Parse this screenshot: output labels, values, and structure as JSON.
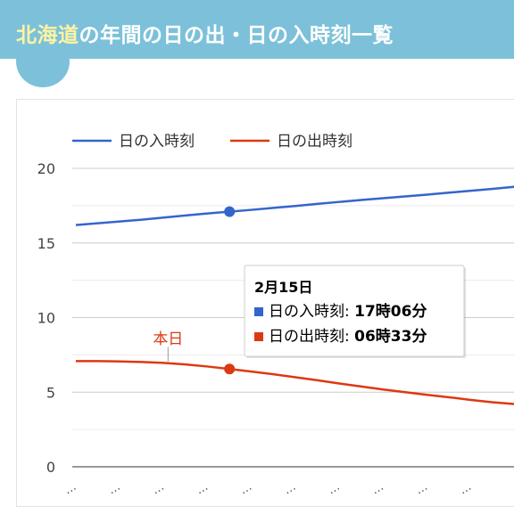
{
  "header": {
    "title_highlight": "北海道",
    "title_rest": "の年間の日の出・日の入時刻一覧"
  },
  "colors": {
    "header_bg": "#7cc1d9",
    "highlight_text": "#fff3a3",
    "sunset_series": "#3366cc",
    "sunrise_series": "#dc3912"
  },
  "chart_data": {
    "type": "line",
    "legend_position": "top-left",
    "grid": true,
    "ylim": [
      0,
      20
    ],
    "y_ticks": [
      "0",
      "5",
      "10",
      "15",
      "20"
    ],
    "x_ticks": [
      "…",
      "…",
      "…",
      "…",
      "…",
      "…",
      "…",
      "…",
      "…",
      "…"
    ],
    "series": [
      {
        "name": "日の入時刻",
        "color": "#3366cc",
        "x": [
          0,
          0.5,
          1,
          1.5,
          2,
          2.5,
          3,
          3.5,
          4,
          4.5,
          5,
          5.5,
          6,
          6.5,
          7,
          7.5,
          8,
          8.5,
          9,
          9.5,
          10
        ],
        "values": [
          16.2,
          16.32,
          16.44,
          16.56,
          16.7,
          16.84,
          16.98,
          17.1,
          17.22,
          17.35,
          17.48,
          17.62,
          17.75,
          17.88,
          18.0,
          18.12,
          18.24,
          18.37,
          18.5,
          18.63,
          18.77
        ]
      },
      {
        "name": "日の出時刻",
        "color": "#dc3912",
        "x": [
          0,
          0.5,
          1,
          1.5,
          2,
          2.5,
          3,
          3.5,
          4,
          4.5,
          5,
          5.5,
          6,
          6.5,
          7,
          7.5,
          8,
          8.5,
          9,
          9.5,
          10
        ],
        "values": [
          7.08,
          7.08,
          7.06,
          7.02,
          6.96,
          6.86,
          6.72,
          6.55,
          6.38,
          6.2,
          6.0,
          5.8,
          5.58,
          5.38,
          5.18,
          5.0,
          4.82,
          4.66,
          4.48,
          4.32,
          4.2
        ]
      }
    ],
    "today_marker": {
      "label": "本日",
      "x": 2.1
    },
    "focus_point": {
      "x": 3.5,
      "sunset": 17.1,
      "sunrise": 6.55
    },
    "tooltip": {
      "date": "2月15日",
      "rows": [
        {
          "label": "日の入時刻: ",
          "value": "17時06分",
          "color": "#3366cc"
        },
        {
          "label": "日の出時刻: ",
          "value": "06時33分",
          "color": "#dc3912"
        }
      ]
    }
  }
}
